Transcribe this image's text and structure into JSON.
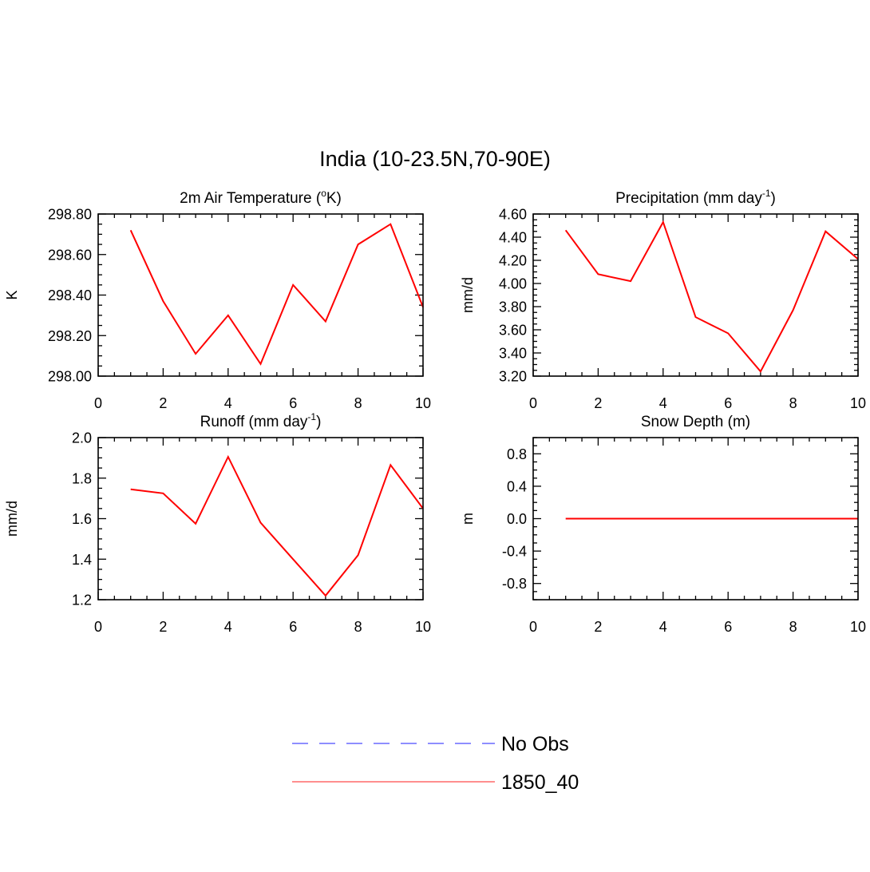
{
  "title": "India (10-23.5N,70-90E)",
  "legend": {
    "placement": "bottom-center",
    "entries": [
      {
        "label": "No Obs",
        "color": "#7f7fff",
        "style": "dashed"
      },
      {
        "label": "1850_40",
        "color": "#ff7f7f",
        "style": "solid"
      }
    ]
  },
  "chart_data": [
    {
      "type": "line",
      "title": {
        "main": "2m Air Temperature (",
        "sup": "o",
        "tail": "K)"
      },
      "ylabel": "K",
      "xlim": [
        0,
        10
      ],
      "ylim": [
        298.0,
        298.8
      ],
      "xticks": [
        "0",
        "2",
        "4",
        "6",
        "8",
        "10"
      ],
      "yticks": [
        "298.00",
        "298.20",
        "298.40",
        "298.60",
        "298.80"
      ],
      "series": [
        {
          "name": "1850_40",
          "color": "#ff0000",
          "x": [
            1,
            2,
            3,
            4,
            5,
            6,
            7,
            8,
            9,
            10
          ],
          "y": [
            298.72,
            298.37,
            298.11,
            298.3,
            298.06,
            298.45,
            298.27,
            298.65,
            298.75,
            298.34
          ]
        }
      ]
    },
    {
      "type": "line",
      "title": {
        "main": "Precipitation (mm day",
        "sup": "-1",
        "tail": ")"
      },
      "ylabel": "mm/d",
      "xlim": [
        0,
        10
      ],
      "ylim": [
        3.2,
        4.6
      ],
      "xticks": [
        "0",
        "2",
        "4",
        "6",
        "8",
        "10"
      ],
      "yticks": [
        "3.20",
        "3.40",
        "3.60",
        "3.80",
        "4.00",
        "4.20",
        "4.40",
        "4.60"
      ],
      "series": [
        {
          "name": "1850_40",
          "color": "#ff0000",
          "x": [
            1,
            2,
            3,
            4,
            5,
            6,
            7,
            8,
            9,
            10
          ],
          "y": [
            4.46,
            4.08,
            4.02,
            4.53,
            3.71,
            3.57,
            3.24,
            3.77,
            4.45,
            4.21
          ]
        }
      ]
    },
    {
      "type": "line",
      "title": {
        "main": "Runoff (mm day",
        "sup": "-1",
        "tail": ")"
      },
      "ylabel": "mm/d",
      "xlim": [
        0,
        10
      ],
      "ylim": [
        1.2,
        2.0
      ],
      "xticks": [
        "0",
        "2",
        "4",
        "6",
        "8",
        "10"
      ],
      "yticks": [
        "1.2",
        "1.4",
        "1.6",
        "1.8",
        "2.0"
      ],
      "series": [
        {
          "name": "1850_40",
          "color": "#ff0000",
          "x": [
            1,
            2,
            3,
            4,
            5,
            6,
            7,
            8,
            9,
            10
          ],
          "y": [
            1.745,
            1.725,
            1.575,
            1.905,
            1.58,
            1.4,
            1.22,
            1.42,
            1.865,
            1.65
          ]
        }
      ]
    },
    {
      "type": "line",
      "title": {
        "main": "Snow Depth (m)",
        "sup": "",
        "tail": ""
      },
      "ylabel": "m",
      "xlim": [
        0,
        10
      ],
      "ylim": [
        -1.0,
        1.0
      ],
      "xticks": [
        "0",
        "2",
        "4",
        "6",
        "8",
        "10"
      ],
      "yticks": [
        "-0.8",
        "-0.4",
        "0.0",
        "0.4",
        "0.8"
      ],
      "series": [
        {
          "name": "1850_40",
          "color": "#ff0000",
          "x": [
            1,
            2,
            3,
            4,
            5,
            6,
            7,
            8,
            9,
            10
          ],
          "y": [
            0,
            0,
            0,
            0,
            0,
            0,
            0,
            0,
            0,
            0
          ]
        }
      ]
    }
  ]
}
